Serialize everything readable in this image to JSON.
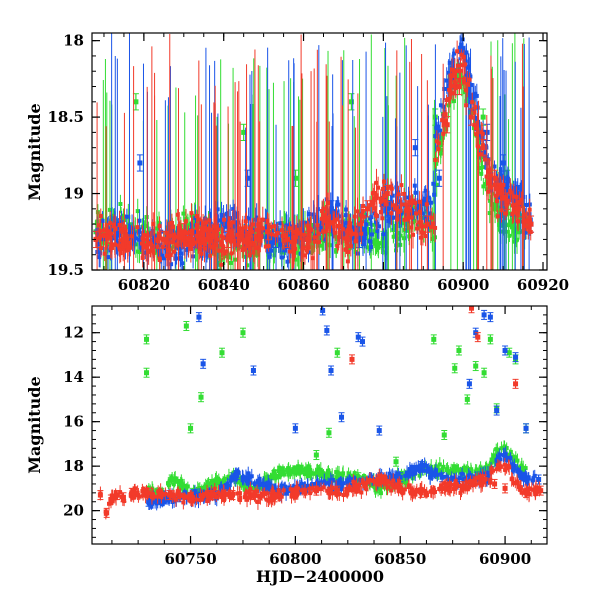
{
  "chart_data": [
    {
      "type": "scatter",
      "panel": "top",
      "title": "",
      "xlabel": "",
      "ylabel": "Magnitude",
      "xlim": [
        60807,
        60921
      ],
      "ylim": [
        19.5,
        17.95
      ],
      "y_inverted": true,
      "xticks": [
        60820,
        60840,
        60860,
        60880,
        60900,
        60920
      ],
      "yticks": [
        18,
        18.5,
        19,
        19.5
      ],
      "grid": false,
      "legend": "none",
      "error_bars": true,
      "colors": {
        "green": "#33dd33",
        "blue": "#1a55e8",
        "red": "#f23a2a"
      },
      "series": [
        {
          "color": "green",
          "x": [
            60808,
            60812,
            60818,
            60825,
            60832,
            60838,
            60845,
            60852,
            60858,
            60865,
            60872,
            60880,
            60886,
            60893,
            60899,
            60905,
            60911,
            60916
          ],
          "y": [
            19.25,
            19.2,
            18.4,
            19.3,
            19.2,
            19.35,
            18.6,
            19.3,
            18.9,
            19.25,
            18.4,
            19.3,
            19.2,
            18.5,
            18.2,
            18.5,
            18.9,
            19.2
          ]
        },
        {
          "color": "blue",
          "x": [
            60808,
            60813,
            60819,
            60826,
            60833,
            60840,
            60846,
            60853,
            60860,
            60867,
            60874,
            60881,
            60888,
            60894,
            60898,
            60902,
            60906,
            60910,
            60914,
            60917
          ],
          "y": [
            19.3,
            19.25,
            18.8,
            19.35,
            19.3,
            19.2,
            18.9,
            19.3,
            19.3,
            19.1,
            19.3,
            19.1,
            18.7,
            18.9,
            18.3,
            18.4,
            18.6,
            18.8,
            19.0,
            19.2
          ]
        },
        {
          "color": "red",
          "x": [
            60808,
            60811,
            60815,
            60820,
            60825,
            60830,
            60835,
            60841,
            60846,
            60851,
            60856,
            60861,
            60866,
            60871,
            60876,
            60881,
            60886,
            60891,
            60896,
            60899,
            60902,
            60905,
            60908,
            60911,
            60914,
            60917
          ],
          "y": [
            19.3,
            19.25,
            19.3,
            19.35,
            19.3,
            19.25,
            19.3,
            19.3,
            19.3,
            19.25,
            19.3,
            19.3,
            19.2,
            19.3,
            19.1,
            19.0,
            19.1,
            19.2,
            18.55,
            18.3,
            18.5,
            18.7,
            18.9,
            19.05,
            19.1,
            19.2
          ]
        }
      ]
    },
    {
      "type": "scatter",
      "panel": "bottom",
      "title": "",
      "xlabel": "HJD−2400000",
      "ylabel": "Magnitude",
      "xlim": [
        60703,
        60920
      ],
      "ylim": [
        21.5,
        10.8
      ],
      "y_inverted": true,
      "xticks": [
        60750,
        60800,
        60850,
        60900
      ],
      "yticks": [
        12,
        14,
        16,
        18,
        20
      ],
      "grid": false,
      "legend": "none",
      "error_bars": true,
      "colors": {
        "green": "#33dd33",
        "blue": "#1a55e8",
        "red": "#f23a2a"
      },
      "series": [
        {
          "color": "green",
          "x": [
            60729,
            60729,
            60736,
            60741,
            60748,
            60750,
            60751,
            60755,
            60760,
            60765,
            60770,
            60775,
            60780,
            60790,
            60800,
            60810,
            60816,
            60820,
            60830,
            60840,
            60848,
            60860,
            60866,
            60871,
            60876,
            60878,
            60882,
            60886,
            60890,
            60893,
            60896,
            60902,
            60905,
            60910
          ],
          "y": [
            12.3,
            13.8,
            19.2,
            18.6,
            11.7,
            16.3,
            19.2,
            14.9,
            18.8,
            12.9,
            18.5,
            12.0,
            19.0,
            18.4,
            18.2,
            17.5,
            16.5,
            12.9,
            18.5,
            19.0,
            17.8,
            18.2,
            12.3,
            16.6,
            13.6,
            12.8,
            15.0,
            13.5,
            13.8,
            12.3,
            15.4,
            12.9,
            13.2,
            16.3
          ]
        },
        {
          "color": "blue",
          "x": [
            60730,
            60738,
            60745,
            60754,
            60756,
            60762,
            60772,
            60780,
            60792,
            60800,
            60813,
            60815,
            60817,
            60822,
            60830,
            60832,
            60840,
            60850,
            60860,
            60870,
            60883,
            60886,
            60890,
            60893,
            60896,
            60900,
            60905,
            60910,
            60916
          ],
          "y": [
            19.6,
            19.5,
            19.4,
            11.3,
            13.4,
            19.3,
            18.4,
            13.7,
            19.1,
            16.3,
            11.0,
            11.9,
            13.7,
            15.8,
            12.2,
            12.4,
            16.4,
            18.5,
            18.0,
            18.5,
            14.3,
            12.0,
            11.2,
            11.3,
            15.5,
            12.8,
            13.1,
            16.3,
            18.6
          ]
        },
        {
          "color": "red",
          "x": [
            60707,
            60710,
            60712,
            60715,
            60718,
            60722,
            60730,
            60740,
            60750,
            60760,
            60770,
            60780,
            60790,
            60800,
            60810,
            60820,
            60827,
            60830,
            60840,
            60850,
            60860,
            60870,
            60880,
            60884,
            60887,
            60890,
            60895,
            60900,
            60905,
            60910,
            60917
          ],
          "y": [
            19.3,
            20.1,
            19.5,
            19.3,
            19.4,
            19.2,
            19.2,
            19.3,
            19.4,
            19.3,
            19.3,
            19.3,
            19.4,
            19.2,
            19.1,
            19.1,
            13.2,
            19.0,
            18.6,
            19.0,
            19.2,
            19.0,
            18.9,
            10.9,
            12.2,
            18.6,
            18.8,
            19.0,
            14.3,
            19.2,
            19.1
          ]
        }
      ]
    }
  ]
}
